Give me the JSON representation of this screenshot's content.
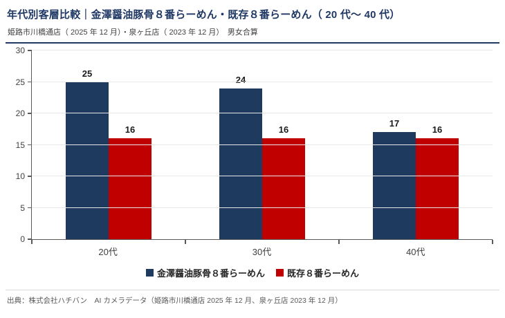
{
  "header": {
    "title": "年代別客層比較｜金澤醤油豚骨８番らーめん・既存８番らーめん（ 20 代～ 40 代）",
    "subtitle": "姫路市川橋通店（ 2025 年 12 月）・泉ヶ丘店（ 2023 年 12 月）　男女合算"
  },
  "footer": {
    "source": "出典：株式会社ハチバン　AI カメラデータ（姫路市川橋通店 2025 年 12 月、泉ヶ丘店 2023 年 12 月）"
  },
  "colors": {
    "series1": "#1F3A5F",
    "series2": "#C00000",
    "title_text": "#1F3864",
    "axis": "#595959",
    "gridline": "#E8E8E8",
    "header_rule": "#1F3864",
    "footer_rule": "#D9D9D9"
  },
  "chart_data": {
    "type": "bar",
    "title": "年代別客層比較｜金澤醤油豚骨８番らーめん・既存８番らーめん（ 20 代～ 40 代）",
    "subtitle": "姫路市川橋通店（ 2025 年 12 月）・泉ヶ丘店（ 2023 年 12 月）　男女合算",
    "categories": [
      "20代",
      "30代",
      "40代"
    ],
    "series": [
      {
        "name": "金澤醤油豚骨８番らーめん",
        "color": "#1F3A5F",
        "values": [
          25,
          24,
          17
        ]
      },
      {
        "name": "既存８番らーめん",
        "color": "#C00000",
        "values": [
          16,
          16,
          16
        ]
      }
    ],
    "xlabel": "",
    "ylabel": "",
    "ylim": [
      0,
      30
    ],
    "yticks": [
      0,
      5,
      10,
      15,
      20,
      25,
      30
    ],
    "grid": true,
    "data_labels": true,
    "legend_position": "bottom"
  }
}
